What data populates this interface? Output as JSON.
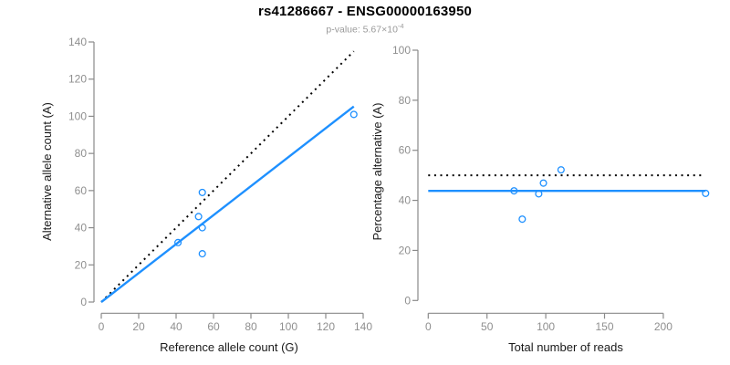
{
  "header": {
    "title": "rs41286667 - ENSG00000163950",
    "pvalue_label": "p-value: 5.67×10",
    "pvalue_exponent": "-4"
  },
  "colors": {
    "accent_blue": "#1E90FF",
    "line_black": "#000000",
    "axis_gray": "#8A8A8A",
    "tick_label_gray": "#8F8F8F",
    "axis_title_color": "#1A1A1A",
    "subtitle_gray": "#9A9A9A"
  },
  "chart_data": [
    {
      "type": "scatter",
      "panel": "allele-counts",
      "xlabel": "Reference allele count (G)",
      "ylabel": "Alternative allele count (A)",
      "xlim": [
        0,
        140
      ],
      "ylim": [
        0,
        140
      ],
      "xticks": [
        0,
        20,
        40,
        60,
        80,
        100,
        120,
        140
      ],
      "yticks": [
        0,
        20,
        40,
        60,
        80,
        100,
        120,
        140
      ],
      "grid": false,
      "legend": null,
      "points": [
        {
          "x": 41,
          "y": 32
        },
        {
          "x": 52,
          "y": 46
        },
        {
          "x": 54,
          "y": 26
        },
        {
          "x": 54,
          "y": 40
        },
        {
          "x": 54,
          "y": 59
        },
        {
          "x": 135,
          "y": 101
        }
      ],
      "lines": [
        {
          "name": "identity-expected-line",
          "style": "dotted",
          "color": "#000000",
          "x": [
            0,
            135
          ],
          "y": [
            0,
            135
          ]
        },
        {
          "name": "fitted-ratio-line",
          "style": "solid",
          "color": "#1E90FF",
          "x": [
            0,
            135
          ],
          "y": [
            0,
            105.3
          ]
        }
      ]
    },
    {
      "type": "scatter",
      "panel": "percentage-vs-coverage",
      "xlabel": "Total number of reads",
      "ylabel": "Percentage alternative (A)",
      "xlim": [
        0,
        236
      ],
      "ylim": [
        0,
        100
      ],
      "xticks": [
        0,
        50,
        100,
        150,
        200
      ],
      "yticks": [
        0,
        20,
        40,
        60,
        80,
        100
      ],
      "grid": false,
      "legend": null,
      "points": [
        {
          "x": 73,
          "y": 43.8
        },
        {
          "x": 80,
          "y": 32.5
        },
        {
          "x": 94,
          "y": 42.6
        },
        {
          "x": 98,
          "y": 46.9
        },
        {
          "x": 113,
          "y": 52.2
        },
        {
          "x": 236,
          "y": 42.8
        }
      ],
      "lines": [
        {
          "name": "expected-50-percent-line",
          "style": "dotted",
          "color": "#000000",
          "x": [
            0,
            233
          ],
          "y": [
            50,
            50
          ]
        },
        {
          "name": "mean-percentage-line",
          "style": "solid",
          "color": "#1E90FF",
          "x": [
            0,
            236
          ],
          "y": [
            43.8,
            43.8
          ]
        }
      ]
    }
  ]
}
